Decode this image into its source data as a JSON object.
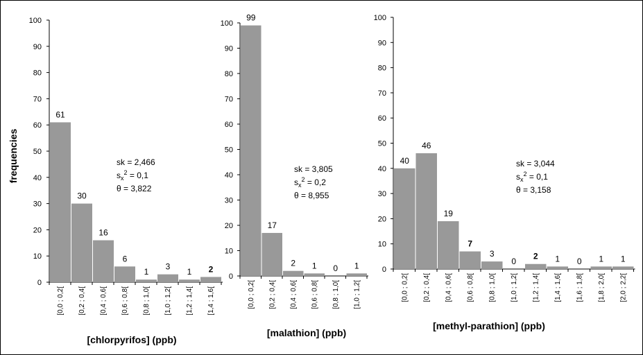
{
  "ylabel": "frequencies",
  "colors": {
    "bar": "#999999",
    "axis": "#000000"
  },
  "chart_data": [
    {
      "type": "bar",
      "xlabel": "[chlorpyrifos] (ppb)",
      "ylim": [
        0,
        100
      ],
      "yticks": [
        "0",
        "10",
        "20",
        "30",
        "40",
        "50",
        "60",
        "70",
        "80",
        "90",
        "100"
      ],
      "categories": [
        "[0,0 ; 0,2[",
        "[0,2 ; 0,4[",
        "[0,4 ; 0,6[",
        "[0,6 ; 0,8[",
        "[0,8 ; 1,0[",
        "[1,0 ; 1,2[",
        "[1,2 ; 1,4[",
        "[1,4 ; 1,6["
      ],
      "values": [
        61,
        30,
        16,
        6,
        1,
        3,
        1,
        2
      ],
      "labels": [
        "61",
        "30",
        "16",
        "6",
        "1",
        "3",
        "1",
        "2"
      ],
      "bold_labels": [
        false,
        false,
        false,
        false,
        false,
        false,
        false,
        true
      ],
      "stats": {
        "sk": "sk = 2,466",
        "sx2_prefix": "s",
        "sx2_sub": "x",
        "sx2_sup": "2",
        "sx2_value": " = 0,1",
        "theta": "θ = 3,822"
      }
    },
    {
      "type": "bar",
      "xlabel": "[malathion] (ppb)",
      "ylim": [
        0,
        100
      ],
      "yticks": [
        "0",
        "10",
        "20",
        "30",
        "40",
        "50",
        "60",
        "70",
        "80",
        "90",
        "100"
      ],
      "categories": [
        "[0,0 ; 0,2[",
        "[0,2 ; 0,4[",
        "[0,4 ; 0,6[",
        "[0,6 ; 0,8[",
        "[0,8 ; 1,0[",
        "[1,0 ; 1,2["
      ],
      "values": [
        99,
        17,
        2,
        1,
        0,
        1
      ],
      "labels": [
        "99",
        "17",
        "2",
        "1",
        "0",
        "1"
      ],
      "bold_labels": [
        false,
        false,
        false,
        false,
        false,
        false
      ],
      "stats": {
        "sk": "sk = 3,805",
        "sx2_prefix": "s",
        "sx2_sub": "x",
        "sx2_sup": "2",
        "sx2_value": " = 0,2",
        "theta": "θ = 8,955"
      }
    },
    {
      "type": "bar",
      "xlabel": "[methyl-parathion] (ppb)",
      "ylim": [
        0,
        100
      ],
      "yticks": [
        "0",
        "10",
        "20",
        "30",
        "40",
        "50",
        "60",
        "70",
        "80",
        "90",
        "100"
      ],
      "categories": [
        "[0,0 ; 0,2[",
        "[0,2 ; 0,4[",
        "[0,4 ; 0,6[",
        "[0,6 ; 0,8[",
        "[0,8 ; 1,0[",
        "[1,0 ; 1,2[",
        "[1,2 ; 1,4[",
        "[1,4 ; 1,6[",
        "[1,6 ; 1,8[",
        "[1,8 ; 2,0[",
        "[2,0 ; 2,2["
      ],
      "values": [
        40,
        46,
        19,
        7,
        3,
        0,
        2,
        1,
        0,
        1,
        1
      ],
      "labels": [
        "40",
        "46",
        "19",
        "7",
        "3",
        "0",
        "2",
        "1",
        "0",
        "1",
        "1"
      ],
      "bold_labels": [
        false,
        false,
        false,
        true,
        false,
        false,
        true,
        false,
        false,
        false,
        false
      ],
      "stats": {
        "sk": "sk = 3,044",
        "sx2_prefix": "s",
        "sx2_sub": "x",
        "sx2_sup": "2",
        "sx2_value": " = 0,1",
        "theta": "θ = 3,158"
      }
    }
  ]
}
